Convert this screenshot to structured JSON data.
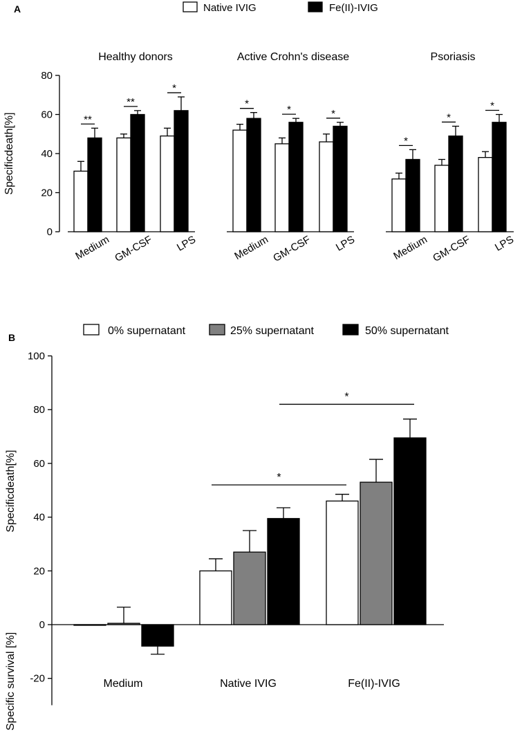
{
  "chart_data": [
    {
      "panel": "A",
      "type": "bar",
      "ylabel": "Specificdeath[%]",
      "ylim": [
        0,
        80
      ],
      "yticks": [
        0,
        20,
        40,
        60,
        80
      ],
      "legend": {
        "position": "top-center",
        "entries": [
          {
            "name": "Native IVIG",
            "color": "#ffffff"
          },
          {
            "name": "Fe(II)-IVIG",
            "color": "#000000"
          }
        ]
      },
      "groups": [
        {
          "title": "Healthy donors",
          "categories": [
            "Medium",
            "GM-CSF",
            "LPS"
          ],
          "series": [
            {
              "name": "Native IVIG",
              "values": [
                31,
                48,
                49
              ],
              "errors": [
                5,
                2,
                4
              ]
            },
            {
              "name": "Fe(II)-IVIG",
              "values": [
                48,
                60,
                62
              ],
              "errors": [
                5,
                2,
                7
              ]
            }
          ],
          "significance": [
            "**",
            "**",
            "*"
          ]
        },
        {
          "title": "Active Crohn's disease",
          "categories": [
            "Medium",
            "GM-CSF",
            "LPS"
          ],
          "series": [
            {
              "name": "Native IVIG",
              "values": [
                52,
                45,
                46
              ],
              "errors": [
                3,
                3,
                4
              ]
            },
            {
              "name": "Fe(II)-IVIG",
              "values": [
                58,
                56,
                54
              ],
              "errors": [
                3,
                2,
                2
              ]
            }
          ],
          "significance": [
            "*",
            "*",
            "*"
          ]
        },
        {
          "title": "Psoriasis",
          "categories": [
            "Medium",
            "GM-CSF",
            "LPS"
          ],
          "series": [
            {
              "name": "Native IVIG",
              "values": [
                27,
                34,
                38
              ],
              "errors": [
                3,
                3,
                3
              ]
            },
            {
              "name": "Fe(II)-IVIG",
              "values": [
                37,
                49,
                56
              ],
              "errors": [
                5,
                5,
                4
              ]
            }
          ],
          "significance": [
            "*",
            "*",
            "*"
          ]
        }
      ]
    },
    {
      "panel": "B",
      "type": "bar",
      "ylabel_upper": "Specificdeath[%]",
      "ylabel_lower": "Specific survival [%]",
      "ylim": [
        -30,
        100
      ],
      "yticks": [
        -20,
        0,
        20,
        40,
        60,
        80,
        100
      ],
      "legend": {
        "position": "top-center",
        "entries": [
          {
            "name": "0% supernatant",
            "color": "#ffffff"
          },
          {
            "name": "25% supernatant",
            "color": "#808080"
          },
          {
            "name": "50% supernatant",
            "color": "#000000"
          }
        ]
      },
      "categories": [
        "Medium",
        "Native IVIG",
        "Fe(II)-IVIG"
      ],
      "series": [
        {
          "name": "0% supernatant",
          "values": [
            0,
            20,
            46
          ],
          "errors": [
            0,
            4.5,
            2.5
          ]
        },
        {
          "name": "25% supernatant",
          "values": [
            0.5,
            27,
            53
          ],
          "errors": [
            6,
            8,
            8.5
          ]
        },
        {
          "name": "50% supernatant",
          "values": [
            -8,
            39.5,
            69.5
          ],
          "errors": [
            3,
            4,
            7
          ]
        }
      ],
      "significance": [
        {
          "label": "*",
          "from": "Native IVIG 0% supernatant",
          "to": "Fe(II)-IVIG 0% supernatant",
          "y": 52
        },
        {
          "label": "*",
          "from": "Native IVIG 50% supernatant",
          "to": "Fe(II)-IVIG 50% supernatant",
          "y": 82
        }
      ]
    }
  ]
}
